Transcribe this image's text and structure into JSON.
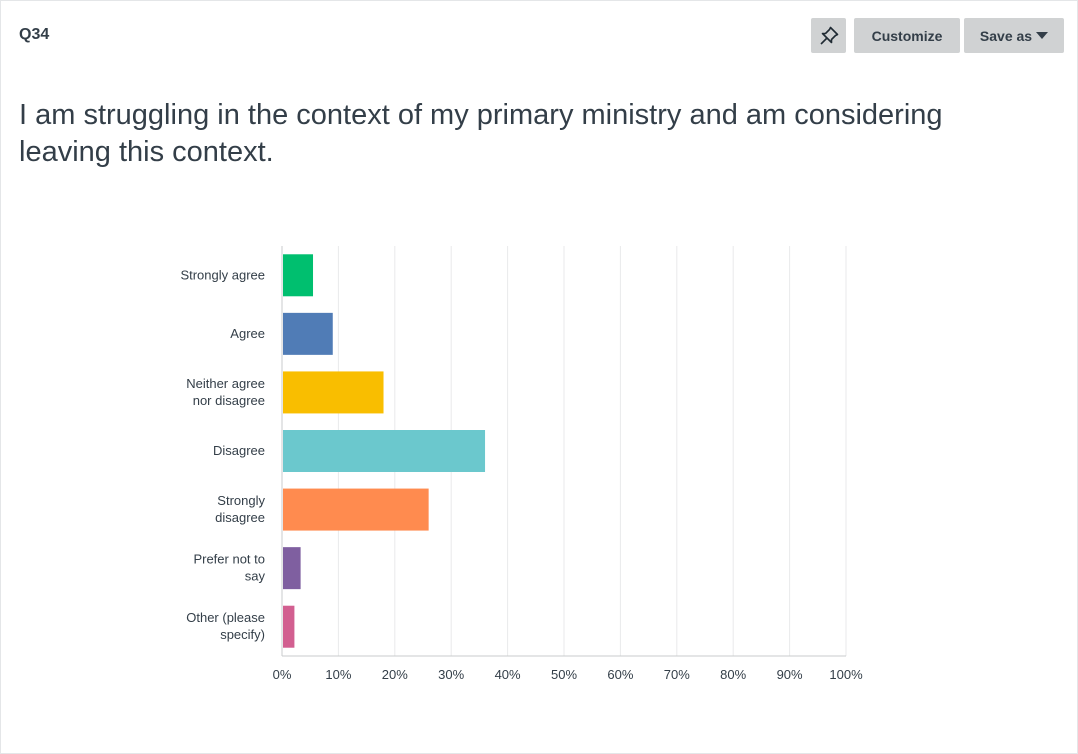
{
  "header": {
    "question_number": "Q34",
    "customize_label": "Customize",
    "save_as_label": "Save as"
  },
  "question": {
    "title": "I am struggling in the context of my primary ministry and am considering leaving this context."
  },
  "chart_data": {
    "type": "bar",
    "orientation": "horizontal",
    "categories": [
      "Strongly agree",
      "Agree",
      "Neither agree nor disagree",
      "Disagree",
      "Strongly disagree",
      "Prefer not to say",
      "Other (please specify)"
    ],
    "category_label_lines": [
      [
        "Strongly agree"
      ],
      [
        "Agree"
      ],
      [
        "Neither agree",
        "nor disagree"
      ],
      [
        "Disagree"
      ],
      [
        "Strongly",
        "disagree"
      ],
      [
        "Prefer not to",
        "say"
      ],
      [
        "Other (please",
        "specify)"
      ]
    ],
    "values": [
      5.5,
      9,
      18,
      36,
      26,
      3.3,
      2.2
    ],
    "colors": [
      "#00bf6f",
      "#507cb6",
      "#f9be00",
      "#6bc8cd",
      "#ff8b4f",
      "#7f5fa0",
      "#d25f90"
    ],
    "xlim": [
      0,
      100
    ],
    "x_ticks": [
      "0%",
      "10%",
      "20%",
      "30%",
      "40%",
      "50%",
      "60%",
      "70%",
      "80%",
      "90%",
      "100%"
    ],
    "grid": true
  }
}
